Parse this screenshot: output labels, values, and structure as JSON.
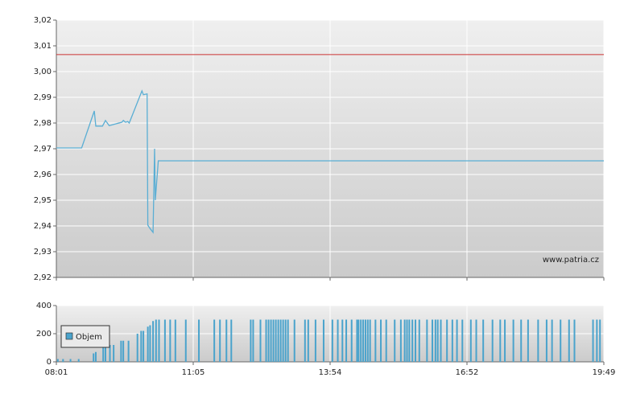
{
  "chart_data": [
    {
      "type": "line",
      "color": "#5aaed4",
      "x": [
        "08:01",
        "08:35",
        "08:52",
        "08:54",
        "09:03",
        "09:07",
        "09:12",
        "09:29",
        "09:31",
        "09:34",
        "09:37",
        "09:39",
        "09:56",
        "09:58",
        "10:03",
        "10:04",
        "10:07",
        "10:11",
        "10:13",
        "10:14",
        "10:18",
        "19:49"
      ],
      "values": [
        2.9703,
        2.9703,
        2.9847,
        2.9788,
        2.9788,
        2.981,
        2.979,
        2.9803,
        2.981,
        2.9803,
        2.9806,
        2.98,
        2.9925,
        2.991,
        2.9913,
        2.9403,
        2.939,
        2.9375,
        2.97,
        2.95,
        2.9653,
        2.9653
      ],
      "reference_line": {
        "value": 3.0066,
        "color": "#cc3333"
      },
      "xlim": [
        "08:01",
        "19:49"
      ],
      "xticks": [
        "08:01",
        "11:05",
        "13:54",
        "16:52",
        "19:49"
      ],
      "ylim": [
        2.92,
        3.02
      ],
      "yticks": [
        {
          "value": 2.92,
          "label": "2,92"
        },
        {
          "value": 2.93,
          "label": "2,93"
        },
        {
          "value": 2.94,
          "label": "2,94"
        },
        {
          "value": 2.95,
          "label": "2,95"
        },
        {
          "value": 2.96,
          "label": "2,96"
        },
        {
          "value": 2.97,
          "label": "2,97"
        },
        {
          "value": 2.98,
          "label": "2,98"
        },
        {
          "value": 2.99,
          "label": "2,99"
        },
        {
          "value": 3.0,
          "label": "3,00"
        },
        {
          "value": 3.01,
          "label": "3,01"
        },
        {
          "value": 3.02,
          "label": "3,02"
        }
      ],
      "grid": true,
      "watermark": "www.patria.cz"
    },
    {
      "type": "bar",
      "x": [
        "08:03",
        "08:10",
        "08:20",
        "08:31",
        "08:51",
        "08:54",
        "09:04",
        "09:07",
        "09:13",
        "09:18",
        "09:28",
        "09:31",
        "09:38",
        "09:50",
        "09:55",
        "09:58",
        "10:04",
        "10:07",
        "10:11",
        "10:15",
        "10:19",
        "10:27",
        "10:34",
        "10:41",
        "10:55",
        "11:12",
        "11:31",
        "11:38",
        "11:46",
        "11:52",
        "12:16",
        "12:19",
        "12:28",
        "12:35",
        "12:38",
        "12:41",
        "12:44",
        "12:47",
        "12:50",
        "12:53",
        "12:56",
        "12:59",
        "13:02",
        "13:10",
        "13:23",
        "13:27",
        "13:36",
        "13:46",
        "13:57",
        "14:04",
        "14:10",
        "14:15",
        "14:22",
        "14:29",
        "14:31",
        "14:34",
        "14:37",
        "14:40",
        "14:43",
        "14:46",
        "14:53",
        "15:00",
        "15:07",
        "15:18",
        "15:26",
        "15:31",
        "15:34",
        "15:37",
        "15:41",
        "15:45",
        "15:50",
        "16:00",
        "16:07",
        "16:11",
        "16:14",
        "16:18",
        "16:26",
        "16:33",
        "16:39",
        "16:46",
        "16:57",
        "17:04",
        "17:13",
        "17:25",
        "17:35",
        "17:41",
        "17:52",
        "18:02",
        "18:11",
        "18:24",
        "18:35",
        "18:42",
        "18:53",
        "19:04",
        "19:11",
        "19:35",
        "19:40",
        "19:44"
      ],
      "series": [
        {
          "name": "Objem",
          "color": "#4aa3cc",
          "values": [
            20,
            20,
            20,
            20,
            60,
            70,
            110,
            110,
            120,
            120,
            150,
            150,
            150,
            200,
            220,
            220,
            250,
            260,
            290,
            300,
            300,
            300,
            300,
            300,
            300,
            300,
            300,
            300,
            300,
            300,
            300,
            300,
            300,
            300,
            300,
            300,
            300,
            300,
            300,
            300,
            300,
            300,
            300,
            300,
            300,
            300,
            300,
            300,
            300,
            300,
            300,
            300,
            300,
            300,
            300,
            300,
            300,
            300,
            300,
            300,
            300,
            300,
            300,
            300,
            300,
            300,
            300,
            300,
            300,
            300,
            300,
            300,
            300,
            300,
            300,
            300,
            300,
            300,
            300,
            300,
            300,
            300,
            300,
            300,
            300,
            300,
            300,
            300,
            300,
            300,
            300,
            300,
            300,
            300,
            300,
            300,
            300,
            300
          ]
        }
      ],
      "xlim": [
        "08:01",
        "19:49"
      ],
      "xticks": [
        "08:01",
        "11:05",
        "13:54",
        "16:52",
        "19:49"
      ],
      "ylim": [
        0,
        400
      ],
      "yticks": [
        0,
        200,
        400
      ],
      "grid": true,
      "legend": "upper-left"
    }
  ]
}
